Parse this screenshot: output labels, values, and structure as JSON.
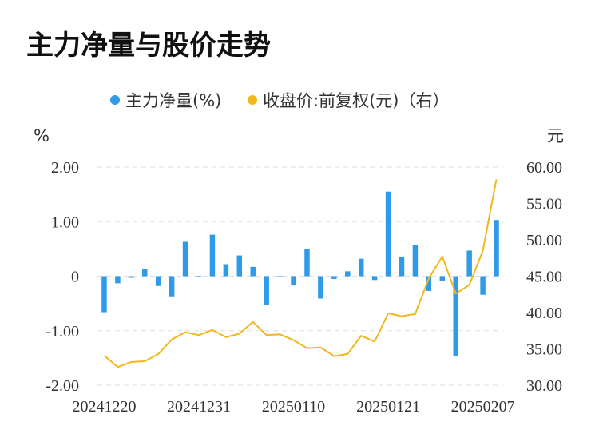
{
  "chart_data": {
    "type": "bar",
    "title": "主力净量与股价走势",
    "left_unit": "%",
    "right_unit": "元",
    "legend": [
      {
        "name": "主力净量(%)",
        "color": "#2f9ae8"
      },
      {
        "name": "收盘价:前复权(元)（右）",
        "color": "#f2b81b"
      }
    ],
    "left_axis": {
      "min": -2,
      "max": 2,
      "ticks": [
        "2.00",
        "1.00",
        "0",
        "-1.00",
        "-2.00"
      ]
    },
    "right_axis": {
      "min": 30,
      "max": 60,
      "ticks": [
        "60.00",
        "55.00",
        "50.00",
        "45.00",
        "40.00",
        "35.00",
        "30.00"
      ]
    },
    "x_tick_labels": [
      "20241220",
      "20241231",
      "20250110",
      "20250121",
      "20250207"
    ],
    "series": [
      {
        "name": "主力净量(%)",
        "type": "bar",
        "color": "#2f9ae8",
        "values": [
          -0.66,
          -0.13,
          -0.03,
          0.14,
          -0.18,
          -0.37,
          0.63,
          0.0,
          0.76,
          0.22,
          0.38,
          0.17,
          -0.53,
          -0.02,
          -0.17,
          0.5,
          -0.41,
          -0.05,
          0.09,
          0.32,
          -0.07,
          1.55,
          0.36,
          0.57,
          -0.27,
          -0.08,
          -1.46,
          0.47,
          -0.34,
          1.03
        ]
      },
      {
        "name": "收盘价:前复权(元)（右）",
        "type": "line",
        "color": "#f2b81b",
        "values": [
          34.1,
          32.5,
          33.2,
          33.3,
          34.3,
          36.3,
          37.3,
          36.9,
          37.6,
          36.6,
          37.1,
          38.7,
          36.9,
          37.0,
          36.2,
          35.1,
          35.2,
          34.0,
          34.3,
          36.8,
          36.0,
          39.9,
          39.5,
          39.8,
          44.7,
          47.7,
          42.6,
          43.8,
          48.5,
          58.3
        ]
      }
    ]
  }
}
